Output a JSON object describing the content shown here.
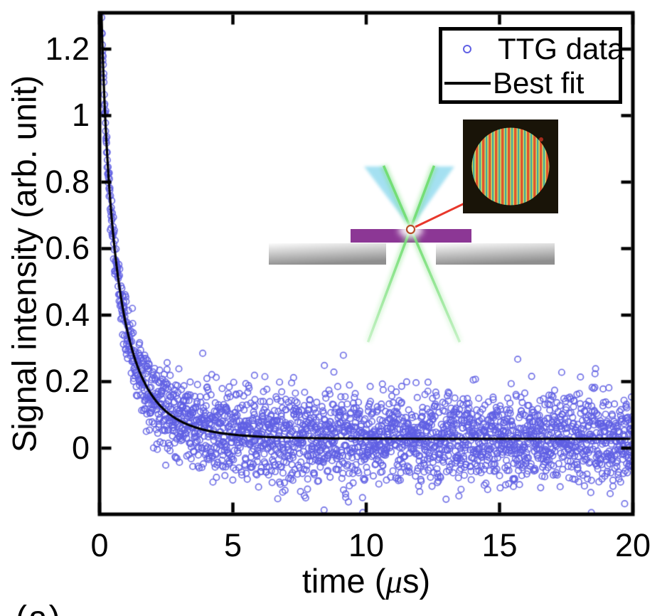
{
  "figure": {
    "panel_label": "(a)",
    "background_color": "#ffffff"
  },
  "chart_data": {
    "type": "scatter",
    "title": "",
    "xlabel": "time (μs)",
    "xlabel_parts": {
      "prefix": "time (",
      "mu": "μ",
      "suffix": "s)"
    },
    "ylabel": "Signal intensity (arb. unit)",
    "xlim": [
      0,
      20
    ],
    "ylim": [
      -0.199,
      1.309
    ],
    "x_ticks": [
      0,
      5,
      10,
      15,
      20
    ],
    "y_ticks": [
      0,
      0.2,
      0.4,
      0.6,
      0.8,
      1,
      1.2
    ],
    "grid": false,
    "box": true,
    "axis_color": "#000000",
    "legend_position": "top-right",
    "series": [
      {
        "name": "TTG data",
        "type": "scatter",
        "marker": "open-circle",
        "color": "#6060e4",
        "n_points": 2600,
        "model": "stretched_exponential_decay_plus_gaussian_noise",
        "decay": {
          "amplitude": 1.65,
          "tau_us": 0.52,
          "beta": 0.7,
          "offset": 0.028
        },
        "noise_sigma": {
          "base": 0.016,
          "growth": 0.052,
          "tau_us": 1.0
        },
        "seed": 20240817
      },
      {
        "name": "Best fit",
        "type": "line",
        "color": "#000000",
        "decay": {
          "amplitude": 1.65,
          "tau_us": 0.52,
          "beta": 0.7,
          "offset": 0.028
        },
        "sampled_curve": {
          "t_us": [
            0,
            0.1,
            0.25,
            0.5,
            0.75,
            1,
            1.5,
            2,
            3,
            4,
            5,
            10,
            15,
            20
          ],
          "y": [
            1.68,
            1.23,
            0.93,
            0.65,
            0.48,
            0.37,
            0.23,
            0.15,
            0.08,
            0.053,
            0.041,
            0.029,
            0.028,
            0.028
          ]
        }
      }
    ]
  },
  "inset": {
    "sample_color": "#8c3795",
    "substrate_light": "#fbfbfb",
    "substrate_dark": "#8f8f8f",
    "pump_beam_color": "#8ed9ee",
    "probe_beam_color": "#6fdd6f",
    "pointer_color": "#e8372b",
    "marker_ring_color": "#b5502a",
    "micrograph_background": "#191408",
    "stripe_orange": "#e2572e",
    "stripe_yellow_green": "#ccd86b",
    "stripe_teal": "#45b4a8",
    "red_speck_color": "#c03020"
  }
}
